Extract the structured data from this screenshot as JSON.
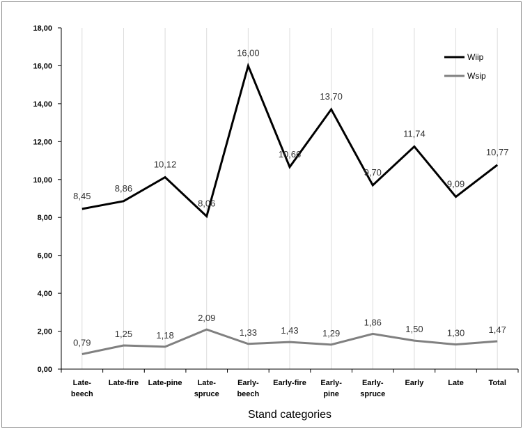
{
  "chart_data": {
    "type": "line",
    "title": "",
    "xlabel": "Stand categories",
    "ylabel": "",
    "categories": [
      [
        "Late-",
        "beech"
      ],
      [
        "Late-fire"
      ],
      [
        "Late-pine"
      ],
      [
        "Late-",
        "spruce"
      ],
      [
        "Early-",
        "beech"
      ],
      [
        "Early-fire"
      ],
      [
        "Early-",
        "pine"
      ],
      [
        "Early-",
        "spruce"
      ],
      [
        "Early"
      ],
      [
        "Late"
      ],
      [
        "Total"
      ]
    ],
    "ylim": [
      0,
      18
    ],
    "yticks": [
      "0,00",
      "2,00",
      "4,00",
      "6,00",
      "8,00",
      "10,00",
      "12,00",
      "14,00",
      "16,00",
      "18,00"
    ],
    "grid": "vertical",
    "legend": "top-right",
    "series": [
      {
        "name": "Wiip",
        "color": "#000000",
        "values": [
          8.45,
          8.86,
          10.12,
          8.06,
          16.0,
          10.66,
          13.7,
          9.7,
          11.74,
          9.09,
          10.77
        ],
        "labels": [
          "8,45",
          "8,86",
          "10,12",
          "8,06",
          "16,00",
          "10,66",
          "13,70",
          "9,70",
          "11,74",
          "9,09",
          "10,77"
        ]
      },
      {
        "name": "Wsip",
        "color": "#808080",
        "values": [
          0.79,
          1.25,
          1.18,
          2.09,
          1.33,
          1.43,
          1.29,
          1.86,
          1.5,
          1.3,
          1.47
        ],
        "labels": [
          "0,79",
          "1,25",
          "1,18",
          "2,09",
          "1,33",
          "1,43",
          "1,29",
          "1,86",
          "1,50",
          "1,30",
          "1,47"
        ]
      }
    ]
  }
}
